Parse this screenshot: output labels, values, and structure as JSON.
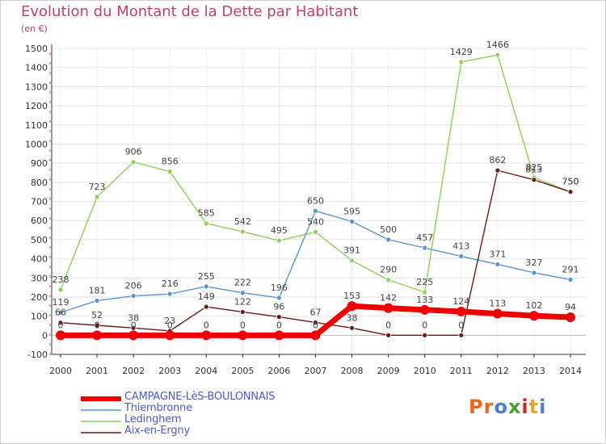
{
  "title": "Evolution du Montant de la Dette par Habitant",
  "subtitle": "(en €)",
  "logo": {
    "text": "Proxiti",
    "letter_colors": [
      "#e8681d",
      "#e8681d",
      "#4a7fd0",
      "#4aa02c",
      "#d0242d",
      "#e8a81d",
      "#4a7fd0"
    ]
  },
  "chart_data": {
    "type": "line",
    "x": [
      "2000",
      "2001",
      "2002",
      "2003",
      "2004",
      "2005",
      "2006",
      "2007",
      "2008",
      "2009",
      "2010",
      "2011",
      "2012",
      "2013",
      "2014"
    ],
    "ylim": [
      -100,
      1500
    ],
    "yticks": [
      "-100",
      "0",
      "100",
      "200",
      "300",
      "400",
      "500",
      "600",
      "700",
      "800",
      "900",
      "1000",
      "1100",
      "1200",
      "1300",
      "1400",
      "1500"
    ],
    "grid": true,
    "legend_position": "bottom-left",
    "series": [
      {
        "name": "CAMPAGNE-LèS-BOULONNAIS",
        "color": "#ee0000",
        "values": [
          0,
          0,
          0,
          0,
          0,
          0,
          0,
          0,
          153,
          142,
          133,
          124,
          113,
          102,
          94
        ],
        "labels": [
          "0",
          "0",
          "0",
          "0",
          "0",
          "0",
          "0",
          "0",
          "153",
          "142",
          "133",
          "124",
          "113",
          "102",
          "94"
        ]
      },
      {
        "name": "Thiembronne",
        "color": "#5b93cf",
        "values": [
          119,
          181,
          206,
          216,
          255,
          222,
          196,
          650,
          595,
          500,
          457,
          413,
          371,
          327,
          291
        ],
        "labels": [
          "119",
          "181",
          "206",
          "216",
          "255",
          "222",
          "196",
          "650",
          "595",
          "500",
          "457",
          "413",
          "371",
          "327",
          "291"
        ]
      },
      {
        "name": "Ledinghem",
        "color": "#8fd05a",
        "values": [
          238,
          723,
          906,
          856,
          585,
          542,
          495,
          540,
          391,
          290,
          225,
          1429,
          1466,
          825,
          750
        ],
        "labels": [
          "238",
          "723",
          "906",
          "856",
          "585",
          "542",
          "495",
          "540",
          "391",
          "290",
          "225",
          "1429",
          "1466",
          "825",
          "750"
        ]
      },
      {
        "name": "Aix-en-Ergny",
        "color": "#6b1a1a",
        "values": [
          66,
          52,
          38,
          23,
          149,
          122,
          96,
          67,
          38,
          0,
          0,
          0,
          862,
          813,
          750
        ],
        "labels": [
          "66",
          "52",
          "38",
          "23",
          "149",
          "122",
          "96",
          "67",
          "38",
          "0",
          "0",
          "0",
          "862",
          "813",
          "750"
        ]
      }
    ]
  }
}
